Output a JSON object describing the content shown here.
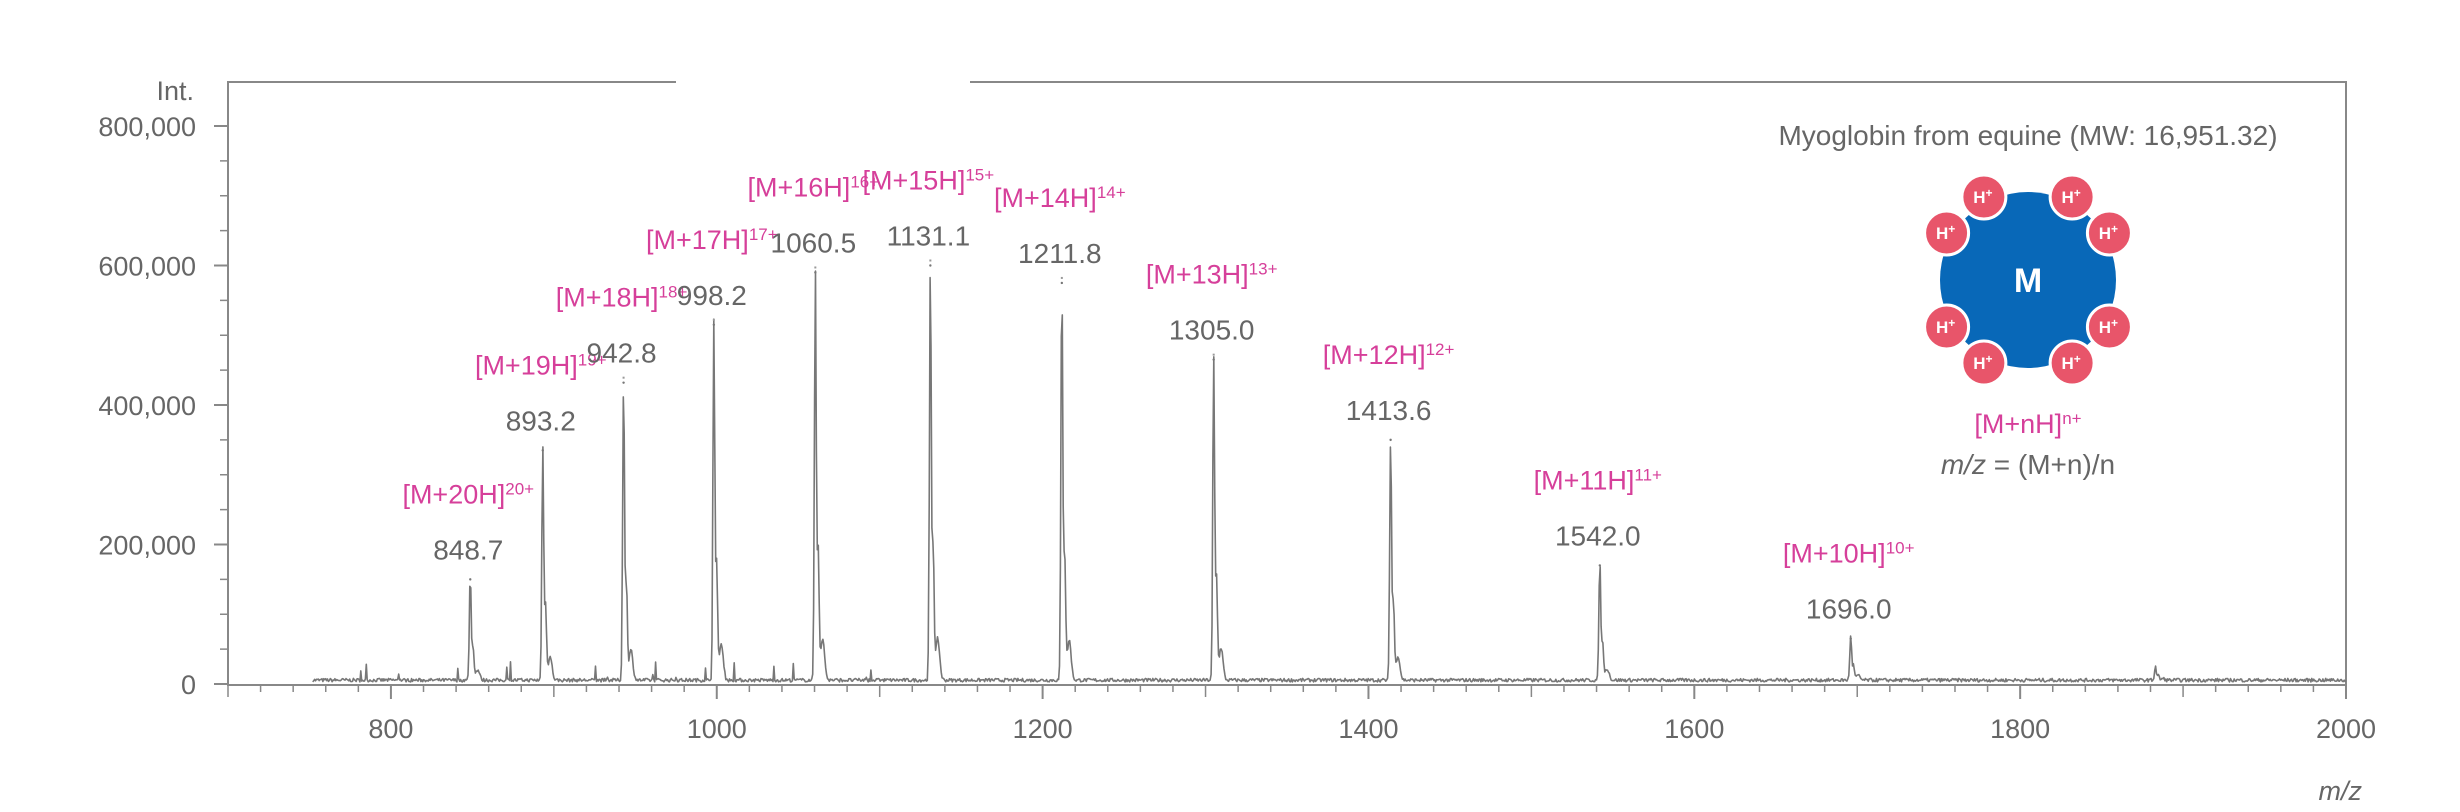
{
  "chart_data": {
    "type": "line",
    "title": "",
    "xlabel": "m/z",
    "ylabel": "Int.",
    "xlim": [
      700,
      2000
    ],
    "ylim": [
      0,
      800000
    ],
    "x_ticks": [
      800,
      1000,
      1200,
      1400,
      1600,
      1800,
      2000
    ],
    "x_tick_labels": [
      "800",
      "1000",
      "1200",
      "1400",
      "1600",
      "1800",
      "2000"
    ],
    "y_ticks": [
      0,
      200000,
      400000,
      600000,
      800000
    ],
    "y_tick_labels": [
      "0",
      "200,000",
      "400,000",
      "600,000",
      "800,000"
    ],
    "grid": false,
    "peaks": [
      {
        "ion": "[M+20H]",
        "charge": "20+",
        "mz_label": "848.7",
        "x": 848.7,
        "y": 150000
      },
      {
        "ion": "[M+19H]",
        "charge": "19+",
        "mz_label": "893.2",
        "x": 893.2,
        "y": 335000
      },
      {
        "ion": "[M+18H]",
        "charge": "18+",
        "mz_label": "942.8",
        "x": 942.8,
        "y": 432000
      },
      {
        "ion": "[M+17H]",
        "charge": "17+",
        "mz_label": "998.2",
        "x": 998.2,
        "y": 515000
      },
      {
        "ion": "[M+16H]",
        "charge": "16+",
        "mz_label": "1060.5",
        "x": 1060.5,
        "y": 590000
      },
      {
        "ion": "[M+15H]",
        "charge": "15+",
        "mz_label": "1131.1",
        "x": 1131.1,
        "y": 600000
      },
      {
        "ion": "[M+14H]",
        "charge": "14+",
        "mz_label": "1211.8",
        "x": 1211.8,
        "y": 575000
      },
      {
        "ion": "[M+13H]",
        "charge": "13+",
        "mz_label": "1305.0",
        "x": 1305.0,
        "y": 465000
      },
      {
        "ion": "[M+12H]",
        "charge": "12+",
        "mz_label": "1413.6",
        "x": 1413.6,
        "y": 350000
      },
      {
        "ion": "[M+11H]",
        "charge": "11+",
        "mz_label": "1542.0",
        "x": 1542.0,
        "y": 170000
      },
      {
        "ion": "[M+10H]",
        "charge": "10+",
        "mz_label": "1696.0",
        "x": 1696.0,
        "y": 65000
      }
    ],
    "minor_peaks": [
      {
        "x": 1883,
        "y": 20000
      }
    ]
  },
  "legend": {
    "title": "Myoglobin from equine (MW: 16,951.32)",
    "protein_symbol": "M",
    "proton_symbol": "H",
    "proton_charge": "+",
    "ion_formula": "[M+nH]",
    "ion_formula_sup": "n+",
    "mz_formula_var": "m/z",
    "mz_formula_rest": " = (M+n)/n",
    "colors": {
      "protein": "#0868b8",
      "proton": "#e8556a",
      "ion_label": "#d63f9a",
      "spectrum": "#777777",
      "axis": "#888888"
    }
  }
}
